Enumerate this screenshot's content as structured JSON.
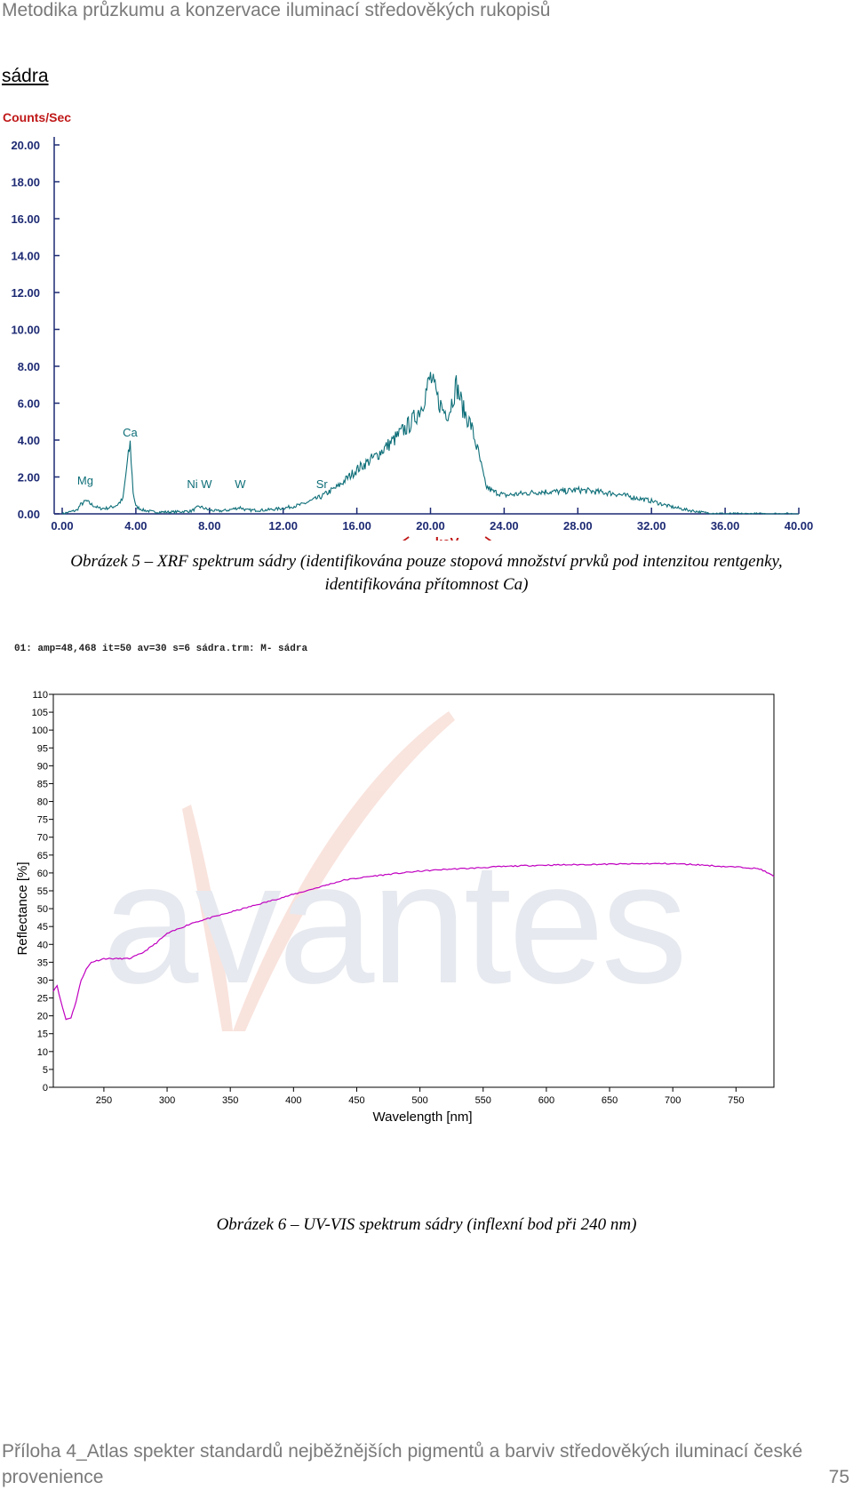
{
  "header": {
    "title": "Metodika průzkumu a konzervace iluminací středověkých rukopisů"
  },
  "section": {
    "title": "sádra"
  },
  "xrf": {
    "caption_line1": "Obrázek 5 – XRF spektrum sádry (identifikována pouze stopová množství prvků pod intenzitou rentgenky,",
    "caption_line2": "identifikována přítomnost Ca)"
  },
  "uvvis": {
    "caption": "Obrázek 6 – UV-VIS spektrum sádry (inflexní bod při 240 nm)",
    "info_line": "01: amp=48,468     it=50 av=30 s=6 sádra.trm: M- sádra",
    "watermark": "avantes"
  },
  "chart_data": [
    {
      "type": "line",
      "ylabel": "Counts/Sec",
      "xlabel": "keV",
      "xlim": [
        0,
        40
      ],
      "ylim": [
        0,
        20
      ],
      "x_ticks": [
        "0.00",
        "4.00",
        "8.00",
        "12.00",
        "16.00",
        "20.00",
        "24.00",
        "28.00",
        "32.00",
        "36.00",
        "40.00"
      ],
      "y_ticks": [
        "0.00",
        "2.00",
        "4.00",
        "6.00",
        "8.00",
        "10.00",
        "12.00",
        "14.00",
        "16.00",
        "18.00",
        "20.00"
      ],
      "color": "#0d6e78",
      "annotations": [
        {
          "label": "Mg",
          "x": 1.25,
          "y": 1.4
        },
        {
          "label": "Ca",
          "x": 3.69,
          "y": 4.0
        },
        {
          "label": "Ni W",
          "x": 7.45,
          "y": 1.2
        },
        {
          "label": "W",
          "x": 9.67,
          "y": 1.2
        },
        {
          "label": "Sr",
          "x": 14.1,
          "y": 1.2
        }
      ],
      "series": [
        {
          "x": [
            0.0,
            0.4,
            0.8,
            1.0,
            1.3,
            1.6,
            2.0,
            2.4,
            2.8,
            3.0,
            3.3,
            3.5,
            3.69,
            3.85,
            4.0,
            4.4,
            5.0,
            6.0,
            7.0,
            7.45,
            8.0,
            8.5,
            9.0,
            9.67,
            10.0,
            11.0,
            12.0,
            13.0,
            14.0,
            15.0,
            16.0,
            17.0,
            18.0,
            19.0,
            19.5,
            20.0,
            20.4,
            20.7,
            21.0,
            21.4,
            21.8,
            22.2,
            22.6,
            23.0,
            23.4,
            23.8,
            24.0,
            25.0,
            26.0,
            27.0,
            28.0,
            29.0,
            30.0,
            31.0,
            32.0,
            33.0,
            34.0,
            35.0,
            36.0,
            38.0,
            40.0
          ],
          "y": [
            0.0,
            0.1,
            0.2,
            0.5,
            0.7,
            0.5,
            0.3,
            0.3,
            0.4,
            0.5,
            0.8,
            2.5,
            3.8,
            1.2,
            0.4,
            0.2,
            0.1,
            0.1,
            0.15,
            0.4,
            0.2,
            0.15,
            0.2,
            0.35,
            0.2,
            0.2,
            0.3,
            0.5,
            0.9,
            1.5,
            2.4,
            3.1,
            4.0,
            5.0,
            5.8,
            7.4,
            6.2,
            5.6,
            5.5,
            7.0,
            5.6,
            4.8,
            3.3,
            1.5,
            1.2,
            1.1,
            1.0,
            1.1,
            1.2,
            1.2,
            1.3,
            1.2,
            1.1,
            0.9,
            0.7,
            0.4,
            0.2,
            0.05,
            0.0,
            0.0,
            0.0
          ]
        }
      ]
    },
    {
      "type": "line",
      "xlabel": "Wavelength [nm]",
      "ylabel": "Reflectance [%]",
      "xlim": [
        210,
        780
      ],
      "ylim": [
        0,
        110
      ],
      "x_ticks": [
        "250",
        "300",
        "350",
        "400",
        "450",
        "500",
        "550",
        "600",
        "650",
        "700",
        "750"
      ],
      "y_ticks": [
        "0",
        "5",
        "10",
        "15",
        "20",
        "25",
        "30",
        "35",
        "40",
        "45",
        "50",
        "55",
        "60",
        "65",
        "70",
        "75",
        "80",
        "85",
        "90",
        "95",
        "100",
        "105",
        "110"
      ],
      "color": "#c000c0",
      "series": [
        {
          "x": [
            210,
            213,
            216,
            220,
            224,
            228,
            232,
            236,
            240,
            250,
            260,
            270,
            280,
            290,
            300,
            320,
            340,
            360,
            380,
            400,
            420,
            440,
            460,
            480,
            500,
            520,
            540,
            560,
            580,
            600,
            620,
            640,
            660,
            680,
            700,
            720,
            740,
            760,
            770,
            780
          ],
          "y": [
            27,
            28.5,
            24,
            19,
            19.5,
            24,
            30,
            33,
            35,
            36,
            36,
            36,
            37.5,
            40,
            43,
            46,
            48,
            50,
            52,
            54,
            56,
            58,
            59,
            59.8,
            60.5,
            61,
            61.3,
            61.7,
            62,
            62.2,
            62.3,
            62.4,
            62.5,
            62.6,
            62.6,
            62.3,
            61.8,
            61.5,
            61,
            59
          ]
        }
      ]
    }
  ],
  "footer": {
    "line1": "Příloha 4_Atlas spekter standardů nejběžnějších pigmentů a barviv středověkých iluminací české",
    "line2": "provenience",
    "page": "75"
  }
}
